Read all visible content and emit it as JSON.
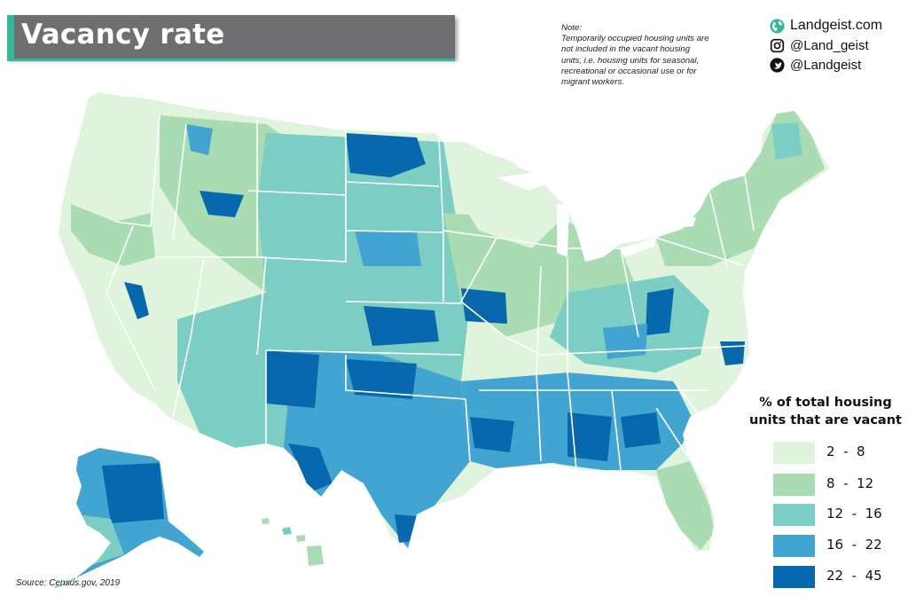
{
  "title": "Vacancy rate",
  "note": {
    "lines": [
      "Note:",
      "Temporarily occupied housing units are",
      "not included in the vacant housing",
      "units, i.e. housing units for seasonal,",
      "recreational or occasional use or for",
      "migrant workers."
    ]
  },
  "brand": {
    "site": "Landgeist.com",
    "instagram": "@Land_geist",
    "twitter": "@Landgeist",
    "icons": {
      "site": "globe-icon",
      "instagram": "instagram-icon",
      "twitter": "twitter-icon"
    }
  },
  "legend": {
    "title_lines": [
      "% of total housing",
      "units that are vacant"
    ],
    "classes": [
      {
        "label": "2  -  8",
        "color": "#e0f3dc"
      },
      {
        "label": "8  -  12",
        "color": "#a9dcb2"
      },
      {
        "label": "12  -  16",
        "color": "#7ccdc3"
      },
      {
        "label": "16  -  22",
        "color": "#42a4d0"
      },
      {
        "label": "22  -  45",
        "color": "#0768ad"
      }
    ]
  },
  "source": "Source: Census.gov, 2019",
  "colors": {
    "title_bar": "#6f6f71",
    "accent": "#35b89a"
  }
}
